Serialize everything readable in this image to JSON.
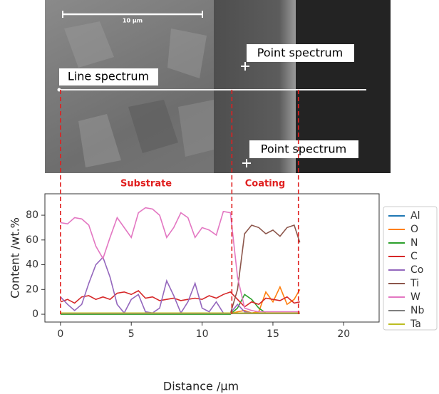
{
  "chart_data": {
    "type": "line",
    "xlabel": "Distance /µm",
    "ylabel": "Content /wt.%",
    "xlim": [
      -1.1,
      22.5
    ],
    "ylim": [
      -6.3,
      97.3
    ],
    "xticks": [
      0,
      5,
      10,
      15,
      20
    ],
    "yticks": [
      0,
      20,
      40,
      60,
      80
    ],
    "legend": "right",
    "x": [
      0,
      0.5,
      1,
      1.5,
      2,
      2.5,
      3,
      3.5,
      4,
      4.5,
      5,
      5.5,
      6,
      6.5,
      7,
      7.5,
      8,
      8.5,
      9,
      9.5,
      10,
      10.5,
      11,
      11.5,
      12,
      12.5,
      13,
      13.5,
      14,
      14.5,
      15,
      15.5,
      16,
      16.5,
      16.9
    ],
    "series": [
      {
        "name": "Al",
        "color": "#1f77b4",
        "values": [
          0.5,
          0.5,
          0.5,
          0.5,
          0.5,
          0.5,
          0.5,
          0.5,
          0.5,
          0.5,
          0.5,
          0.5,
          0.5,
          0.5,
          0.5,
          0.5,
          0.5,
          0.5,
          0.5,
          0.5,
          0.5,
          0.5,
          0.5,
          0.5,
          0.5,
          1,
          1,
          1,
          1,
          1,
          1,
          1,
          1,
          1,
          1
        ]
      },
      {
        "name": "O",
        "color": "#ff7f0e",
        "values": [
          0.5,
          0.5,
          0.5,
          0.5,
          0.5,
          0.5,
          0.5,
          0.5,
          0.5,
          0.5,
          0.5,
          0.5,
          0.5,
          0.5,
          0.5,
          0.5,
          0.5,
          0.5,
          0.5,
          0.5,
          0.5,
          0.5,
          0.5,
          0.5,
          0.5,
          2,
          3,
          1,
          2,
          18,
          10,
          22,
          8,
          12,
          20
        ]
      },
      {
        "name": "N",
        "color": "#2ca02c",
        "values": [
          0,
          0,
          0,
          0,
          0,
          0,
          0,
          0,
          0,
          0,
          0,
          0,
          0,
          0,
          0,
          0,
          0,
          0,
          0,
          0,
          0,
          0,
          0,
          0,
          0,
          5,
          16,
          12,
          5,
          1,
          1,
          1,
          1,
          1,
          1
        ]
      },
      {
        "name": "C",
        "color": "#d62728",
        "values": [
          10,
          12,
          9,
          14,
          15,
          12,
          14,
          12,
          17,
          18,
          16,
          19,
          13,
          14,
          11,
          12,
          13,
          11,
          12,
          13,
          12,
          15,
          13,
          16,
          18,
          12,
          6,
          10,
          8,
          13,
          12,
          11,
          14,
          9,
          10
        ]
      },
      {
        "name": "Co",
        "color": "#9467bd",
        "values": [
          14,
          8,
          3,
          8,
          25,
          40,
          46,
          30,
          8,
          1,
          12,
          16,
          2,
          1,
          5,
          27,
          15,
          1,
          10,
          25,
          5,
          2,
          10,
          1,
          1,
          8,
          2,
          1,
          1,
          1,
          1,
          1,
          1,
          1,
          1
        ]
      },
      {
        "name": "Ti",
        "color": "#8c564b",
        "values": [
          0.5,
          0.5,
          0.5,
          0.5,
          0.5,
          0.5,
          0.5,
          0.5,
          0.5,
          0.5,
          0.5,
          0.5,
          0.5,
          0.5,
          0.5,
          0.5,
          0.5,
          0.5,
          0.5,
          0.5,
          0.5,
          0.5,
          0.5,
          0.5,
          0.5,
          20,
          65,
          72,
          70,
          65,
          68,
          63,
          70,
          72,
          58
        ]
      },
      {
        "name": "W",
        "color": "#e377c2",
        "values": [
          74,
          73,
          78,
          77,
          72,
          55,
          45,
          62,
          78,
          70,
          62,
          82,
          86,
          85,
          80,
          62,
          70,
          82,
          78,
          62,
          70,
          68,
          64,
          83,
          82,
          30,
          5,
          3,
          2,
          2,
          2,
          2,
          2,
          2,
          2
        ]
      },
      {
        "name": "Nb",
        "color": "#7f7f7f",
        "values": [
          0.5,
          0.5,
          0.5,
          0.5,
          0.5,
          0.5,
          0.5,
          0.5,
          0.5,
          0.5,
          0.5,
          0.5,
          0.5,
          0.5,
          0.5,
          0.5,
          0.5,
          0.5,
          0.5,
          0.5,
          0.5,
          0.5,
          0.5,
          0.5,
          0.5,
          0.5,
          0.5,
          0.5,
          0.5,
          0.5,
          0.5,
          0.5,
          0.5,
          0.5,
          0.5
        ]
      },
      {
        "name": "Ta",
        "color": "#bcbd22",
        "values": [
          1,
          1,
          1,
          1,
          1,
          1,
          1,
          1,
          1,
          1,
          1,
          1,
          1,
          1,
          1,
          1,
          1,
          1,
          1,
          1,
          1,
          1,
          1,
          1,
          1,
          1,
          1,
          1,
          1,
          1,
          1,
          1,
          1,
          1,
          1
        ]
      }
    ],
    "boundaries": [
      0,
      12.1,
      16.8
    ],
    "boundary_color": "#e02020",
    "regions": [
      "Substrate",
      "Coating"
    ],
    "image_labels": [
      "Line spectrum",
      "Point spectrum",
      "Point spectrum"
    ],
    "scale_bar": "10 µm"
  }
}
